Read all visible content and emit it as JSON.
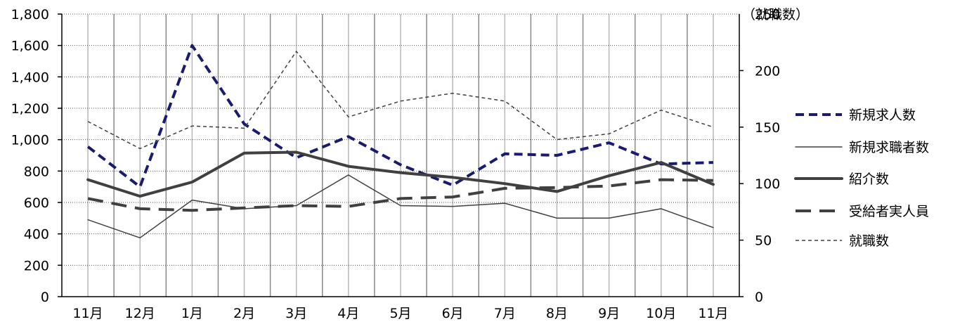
{
  "chart_data": {
    "type": "line",
    "categories": [
      "11月",
      "12月",
      "1月",
      "2月",
      "3月",
      "4月",
      "5月",
      "6月",
      "7月",
      "8月",
      "9月",
      "10月",
      "11月"
    ],
    "y_left": {
      "min": 0,
      "max": 1800,
      "ticks": [
        0,
        200,
        400,
        600,
        800,
        1000,
        1200,
        1400,
        1600,
        1800
      ],
      "tick_labels": [
        "0",
        "200",
        "400",
        "600",
        "800",
        "1,000",
        "1,200",
        "1,400",
        "1,600",
        "1,800"
      ]
    },
    "y_right": {
      "min": 0,
      "max": 250,
      "ticks": [
        0,
        50,
        100,
        150,
        200
      ],
      "tick_labels": [
        "0",
        "50",
        "100",
        "150",
        "200"
      ],
      "label_overlapped": "（就職数）",
      "label_overlapped_value": "250"
    },
    "grid": true,
    "legend_position": "right",
    "series": [
      {
        "name": "新規求人数",
        "axis": "left",
        "style": "dashed-thick",
        "color": "#1a1a6e",
        "values": [
          955,
          700,
          1600,
          1100,
          885,
          1020,
          840,
          710,
          910,
          900,
          980,
          845,
          855
        ]
      },
      {
        "name": "新規求職者数",
        "axis": "left",
        "style": "solid-thin",
        "color": "#404040",
        "values": [
          490,
          375,
          615,
          560,
          580,
          775,
          580,
          575,
          595,
          500,
          500,
          560,
          440
        ]
      },
      {
        "name": "紹介数",
        "axis": "left",
        "style": "solid-thick",
        "color": "#404040",
        "values": [
          745,
          640,
          730,
          915,
          920,
          830,
          790,
          760,
          720,
          670,
          770,
          855,
          715
        ]
      },
      {
        "name": "受給者実人員",
        "axis": "left",
        "style": "longdash-thick",
        "color": "#404040",
        "values": [
          625,
          560,
          550,
          565,
          580,
          575,
          625,
          635,
          690,
          695,
          705,
          745,
          740
        ]
      },
      {
        "name": "就職数",
        "axis": "right",
        "style": "dotted-thin",
        "color": "#404040",
        "values": [
          155,
          131,
          151,
          149,
          217,
          159,
          173,
          180,
          173,
          139,
          144,
          165,
          150
        ]
      }
    ]
  }
}
